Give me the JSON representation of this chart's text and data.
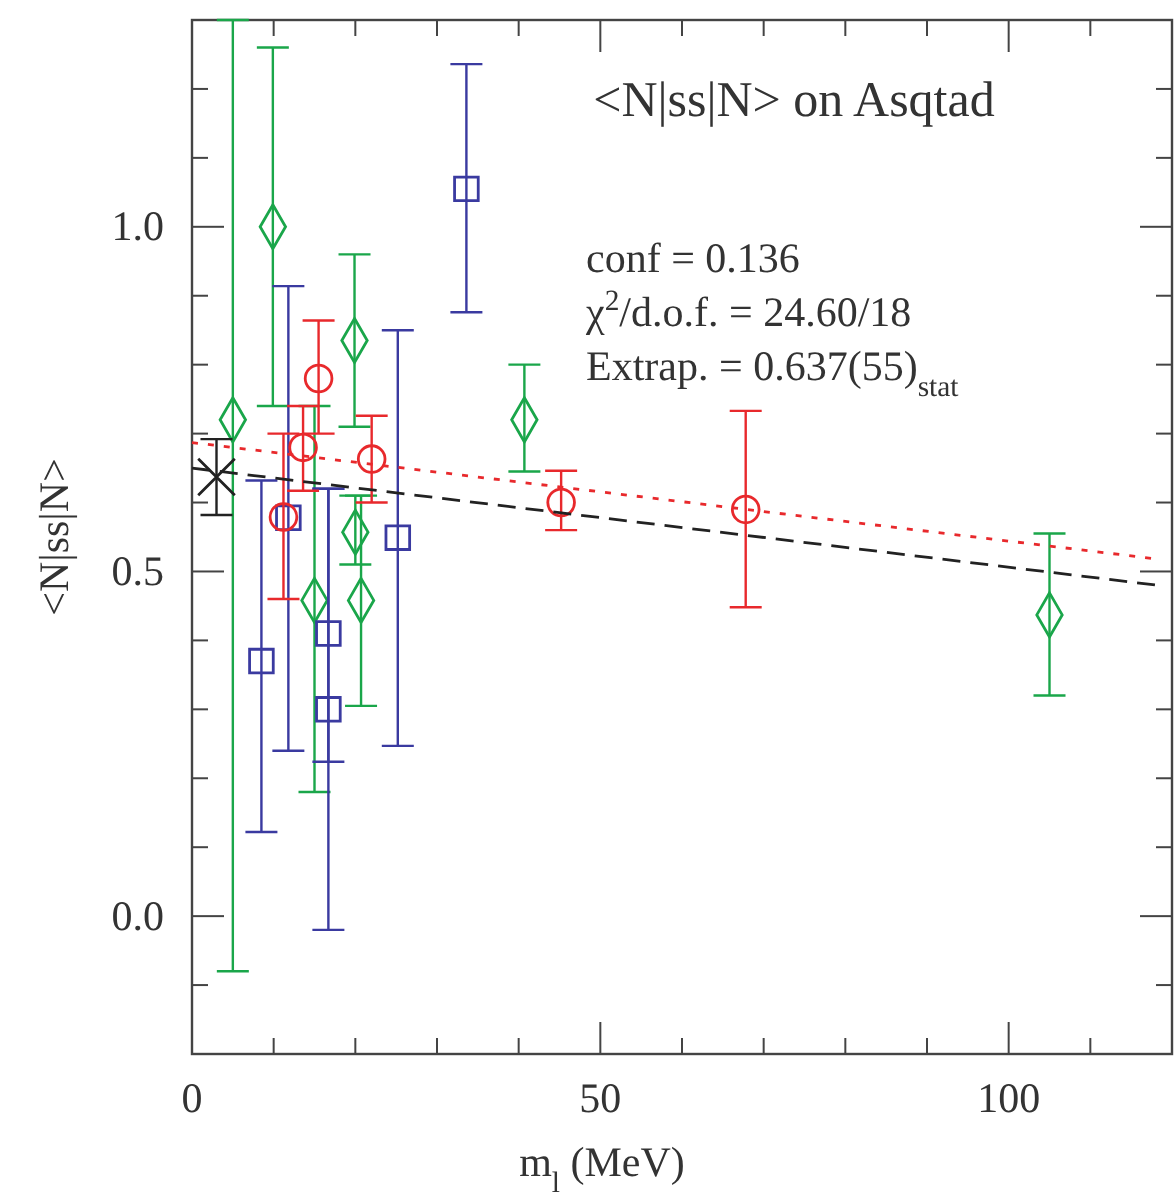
{
  "chart_data": {
    "type": "scatter",
    "title": "<N|ss|N> on Asqtad",
    "xlabel": "m$_{l}$ (MeV)",
    "ylabel": "<N|ss|N>",
    "xlim": [
      0,
      120
    ],
    "ylim": [
      -0.2,
      1.3
    ],
    "xticks": [
      0,
      {
        "value": 10,
        "label": null
      },
      {
        "value": 20,
        "label": null
      },
      {
        "value": 30,
        "label": null
      },
      {
        "value": 40,
        "label": null
      },
      50,
      {
        "value": 60,
        "label": null
      },
      {
        "value": 70,
        "label": null
      },
      {
        "value": 80,
        "label": null
      },
      {
        "value": 90,
        "label": null
      },
      100,
      {
        "value": 110,
        "label": null
      }
    ],
    "yticks": [
      {
        "value": -0.1,
        "label": null
      },
      {
        "value": 0,
        "label": "0.0"
      },
      {
        "value": 0.1,
        "label": null
      },
      {
        "value": 0.2,
        "label": null
      },
      {
        "value": 0.3,
        "label": null
      },
      {
        "value": 0.4,
        "label": null
      },
      {
        "value": 0.5,
        "label": "0.5"
      },
      {
        "value": 0.6,
        "label": null
      },
      {
        "value": 0.7,
        "label": null
      },
      {
        "value": 0.8,
        "label": null
      },
      {
        "value": 0.9,
        "label": null
      },
      {
        "value": 1,
        "label": "1.0"
      },
      {
        "value": 1.1,
        "label": null
      },
      {
        "value": 1.2,
        "label": null
      }
    ],
    "grid": false,
    "annotations": [
      "conf = 0.136",
      "χ$^{2}$/d.o.f. = 24.60/18",
      "Extrap. = 0.637(55)$_{stat}$"
    ],
    "series": [
      {
        "marker": "diamond",
        "color": "#1aa64a",
        "x": [
          5.0,
          9.9,
          15.0,
          19.9,
          20.0,
          20.7,
          40.7,
          105
        ],
        "values": [
          0.72,
          1.0,
          0.458,
          0.835,
          0.557,
          0.458,
          0.72,
          0.437
        ],
        "errors": [
          [
            -0.08,
            1.3
          ],
          [
            0.74,
            1.26
          ],
          [
            0.18,
            0.74
          ],
          [
            0.71,
            0.96
          ],
          [
            0.51,
            0.61
          ],
          [
            0.305,
            0.61
          ],
          [
            0.645,
            0.8
          ],
          [
            0.32,
            0.555
          ]
        ]
      },
      {
        "marker": "square",
        "color": "#3a3aa0",
        "x": [
          8.5,
          11.8,
          16.7,
          16.7,
          25.2,
          33.6
        ],
        "values": [
          0.37,
          0.578,
          0.41,
          0.3,
          0.549,
          1.055
        ],
        "errors": [
          [
            0.122,
            0.632
          ],
          [
            0.24,
            0.914
          ],
          [
            0.224,
            0.62
          ],
          [
            -0.02,
            0.62
          ],
          [
            0.247,
            0.85
          ],
          [
            0.876,
            1.236
          ]
        ]
      },
      {
        "marker": "circle",
        "color": "#e8292c",
        "x": [
          11.2,
          13.6,
          15.5,
          22.0,
          45.2,
          67.8
        ],
        "values": [
          0.579,
          0.68,
          0.78,
          0.663,
          0.6,
          0.59
        ],
        "errors": [
          [
            0.46,
            0.7
          ],
          [
            0.617,
            0.74
          ],
          [
            0.7,
            0.864
          ],
          [
            0.6,
            0.726
          ],
          [
            0.56,
            0.646
          ],
          [
            0.448,
            0.733
          ]
        ]
      },
      {
        "marker": "cross",
        "color": "#222222",
        "x": [
          3.0
        ],
        "values": [
          0.637
        ],
        "errors": [
          0.055
        ]
      },
      {
        "type": "line",
        "line_style": "dotted",
        "color": "#e8292c",
        "x": [
          0,
          118.2
        ],
        "values": [
          0.687,
          0.518
        ]
      },
      {
        "type": "line",
        "line_style": "dashed",
        "color": "#222222",
        "x": [
          0,
          118.2
        ],
        "values": [
          0.65,
          0.48
        ]
      }
    ]
  }
}
